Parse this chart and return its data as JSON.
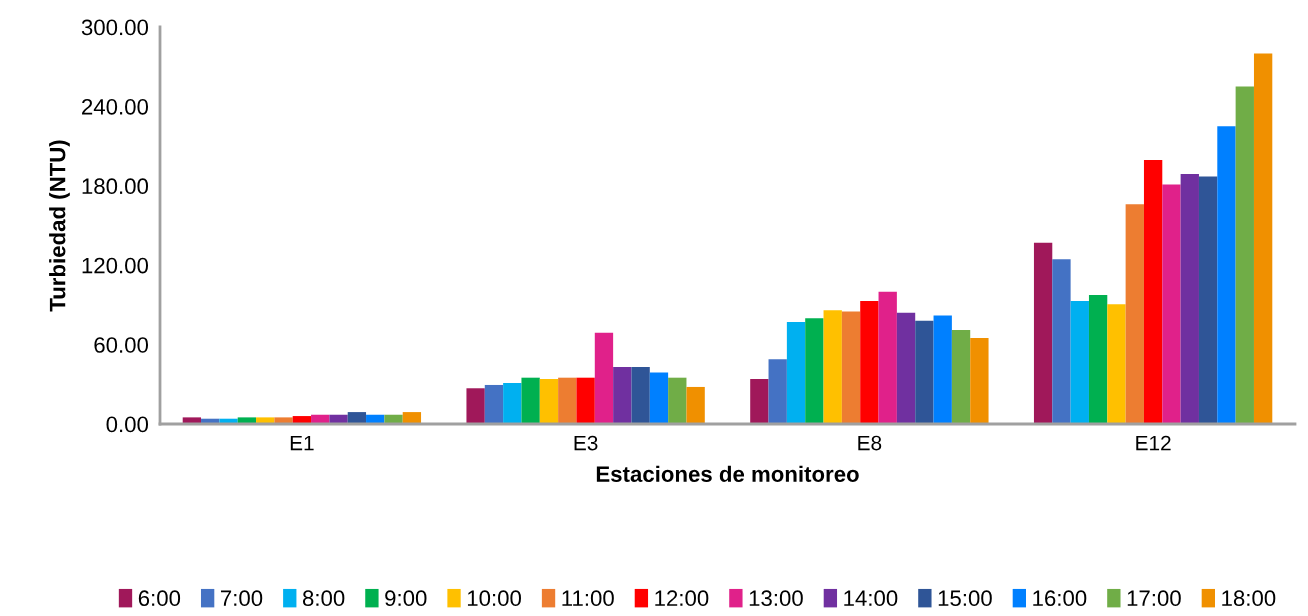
{
  "chart_data": {
    "type": "bar",
    "xlabel": "Estaciones de monitoreo",
    "ylabel": "Turbiedad (NTU)",
    "categories": [
      "E1",
      "E3",
      "E8",
      "E12"
    ],
    "ylim": [
      0,
      300
    ],
    "yticks": [
      {
        "value": 0,
        "label": "0.00"
      },
      {
        "value": 60,
        "label": "60.00"
      },
      {
        "value": 120,
        "label": "120.00"
      },
      {
        "value": 180,
        "label": "180.00"
      },
      {
        "value": 240,
        "label": "240.00"
      },
      {
        "value": 300,
        "label": "300.00"
      }
    ],
    "grid": false,
    "legend": "bottom",
    "series": [
      {
        "name": "6:00",
        "color": "#a0185a",
        "values": [
          5,
          27,
          34,
          137
        ]
      },
      {
        "name": "7:00",
        "color": "#4472c4",
        "values": [
          4,
          29.5,
          49,
          124.5
        ]
      },
      {
        "name": "8:00",
        "color": "#00b0f0",
        "values": [
          4,
          31,
          77,
          93
        ]
      },
      {
        "name": "9:00",
        "color": "#00b050",
        "values": [
          5,
          35,
          80,
          97.5
        ]
      },
      {
        "name": "10:00",
        "color": "#ffc000",
        "values": [
          5,
          34,
          86,
          90.5
        ]
      },
      {
        "name": "11:00",
        "color": "#ed7d31",
        "values": [
          5,
          35,
          85,
          166
        ]
      },
      {
        "name": "12:00",
        "color": "#ff0000",
        "values": [
          6,
          35,
          93,
          199.5
        ]
      },
      {
        "name": "13:00",
        "color": "#e0218a",
        "values": [
          7,
          69,
          100,
          181
        ]
      },
      {
        "name": "14:00",
        "color": "#7030a0",
        "values": [
          7,
          43,
          84,
          189
        ]
      },
      {
        "name": "15:00",
        "color": "#2f5597",
        "values": [
          9,
          43,
          78,
          187
        ]
      },
      {
        "name": "16:00",
        "color": "#0080ff",
        "values": [
          7,
          39,
          82,
          225
        ]
      },
      {
        "name": "17:00",
        "color": "#70ad47",
        "values": [
          7,
          35,
          71,
          255
        ]
      },
      {
        "name": "18:00",
        "color": "#f09000",
        "values": [
          9,
          28,
          65,
          280
        ]
      }
    ]
  }
}
